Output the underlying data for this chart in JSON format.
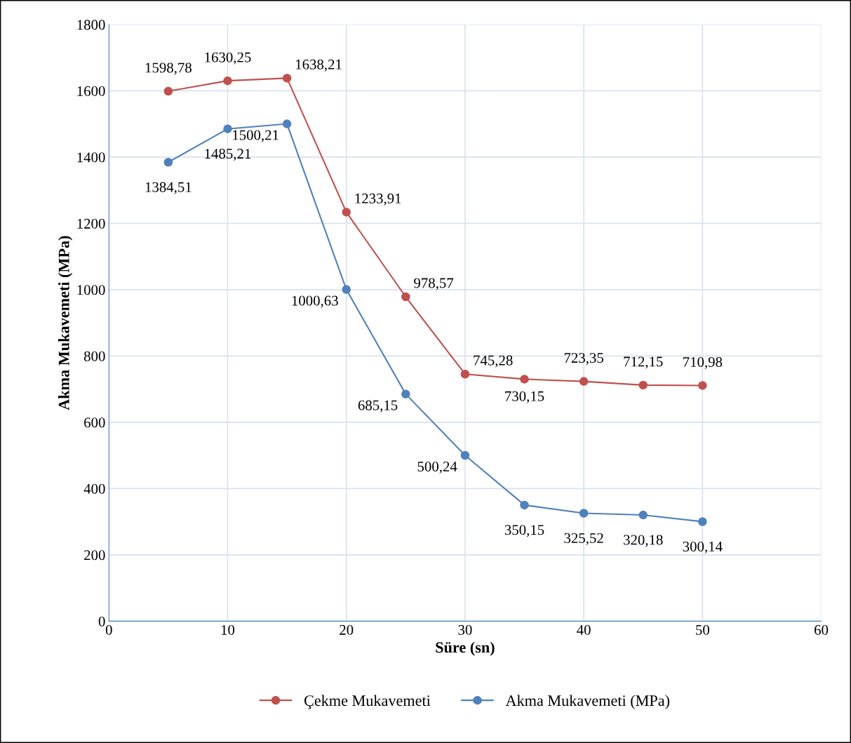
{
  "chart_data": {
    "type": "line",
    "xlabel": "Süre (sn)",
    "ylabel": "Akma Mukavemeti (MPa)",
    "x": [
      5,
      10,
      15,
      20,
      25,
      30,
      35,
      40,
      45,
      50
    ],
    "series": [
      {
        "name": "Çekme Mukavemeti",
        "color": "#c0504d",
        "values": [
          1598.78,
          1630.25,
          1638.21,
          1233.91,
          978.57,
          745.28,
          730.15,
          723.35,
          712.15,
          710.98
        ],
        "value_labels": [
          "1598,78",
          "1630,25",
          "1638,21",
          "1233,91",
          "978,57",
          "745,28",
          "730,15",
          "723,35",
          "712,15",
          "710,98"
        ]
      },
      {
        "name": "Akma Mukavemeti (MPa)",
        "color": "#4f81bd",
        "values": [
          1384.51,
          1485.21,
          1500.21,
          1000.63,
          685.15,
          500.24,
          350.15,
          325.52,
          320.18,
          300.14
        ],
        "value_labels": [
          "1384,51",
          "1485,21",
          "1500,21",
          "1000,63",
          "685,15",
          "500,24",
          "350,15",
          "325,52",
          "320,18",
          "300,14"
        ]
      }
    ],
    "xlim": [
      0,
      60
    ],
    "xticks": [
      0,
      10,
      20,
      30,
      40,
      50,
      60
    ],
    "ylim": [
      0,
      1800
    ],
    "yticks": [
      0,
      200,
      400,
      600,
      800,
      1000,
      1200,
      1400,
      1600,
      1800
    ],
    "grid": true,
    "legend": "bottom",
    "marker": "circle",
    "line_style": "solid"
  }
}
